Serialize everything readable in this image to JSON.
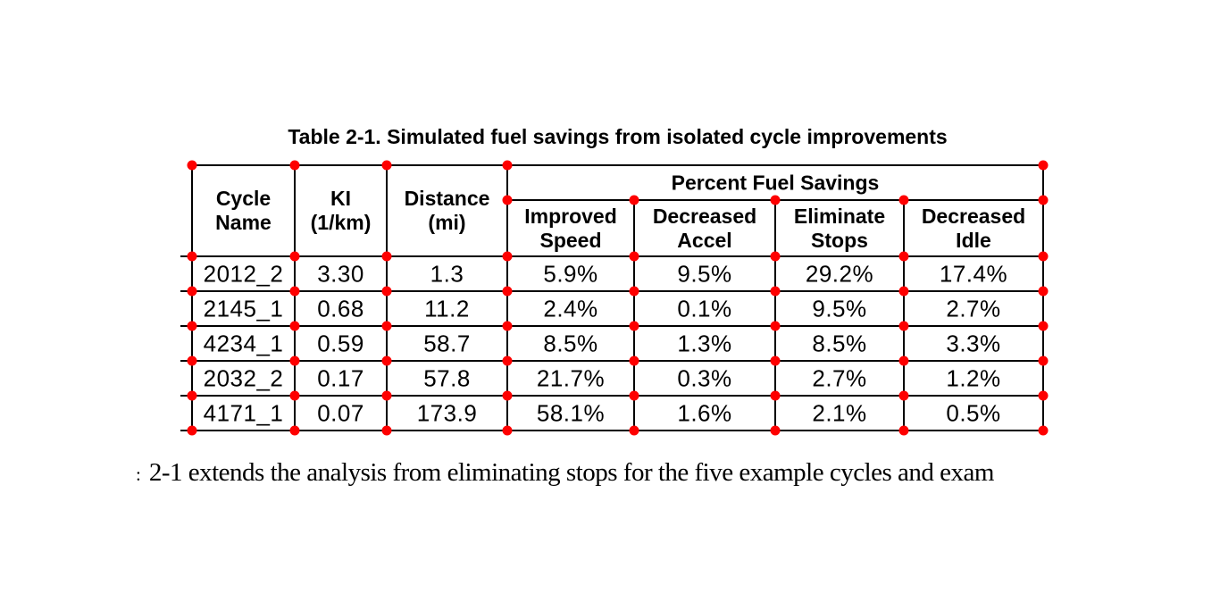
{
  "page": {
    "background": "#ffffff",
    "line_color": "#000000",
    "annotation_dot_color": "#fe0000"
  },
  "title": "Table 2-1. Simulated fuel savings from isolated cycle improvements",
  "table": {
    "header": {
      "cycle_name": [
        "Cycle",
        "Name"
      ],
      "ki": [
        "KI",
        "(1/km)"
      ],
      "distance": [
        "Distance",
        "(mi)"
      ],
      "percent_group": "Percent Fuel Savings",
      "improved_speed": [
        "Improved",
        "Speed"
      ],
      "decreased_accel": [
        "Decreased",
        "Accel"
      ],
      "eliminate_stops": [
        "Eliminate",
        "Stops"
      ],
      "decreased_idle": [
        "Decreased",
        "Idle"
      ]
    },
    "rows": [
      {
        "cycle_name": "2012_2",
        "ki": "3.30",
        "distance": "1.3",
        "improved_speed": "5.9%",
        "decreased_accel": "9.5%",
        "eliminate_stops": "29.2%",
        "decreased_idle": "17.4%"
      },
      {
        "cycle_name": "2145_1",
        "ki": "0.68",
        "distance": "11.2",
        "improved_speed": "2.4%",
        "decreased_accel": "0.1%",
        "eliminate_stops": "9.5%",
        "decreased_idle": "2.7%"
      },
      {
        "cycle_name": "4234_1",
        "ki": "0.59",
        "distance": "58.7",
        "improved_speed": "8.5%",
        "decreased_accel": "1.3%",
        "eliminate_stops": "8.5%",
        "decreased_idle": "3.3%"
      },
      {
        "cycle_name": "2032_2",
        "ki": "0.17",
        "distance": "57.8",
        "improved_speed": "21.7%",
        "decreased_accel": "0.3%",
        "eliminate_stops": "2.7%",
        "decreased_idle": "1.2%"
      },
      {
        "cycle_name": "4171_1",
        "ki": "0.07",
        "distance": "173.9",
        "improved_speed": "58.1%",
        "decreased_accel": "1.6%",
        "eliminate_stops": "2.1%",
        "decreased_idle": "0.5%"
      }
    ]
  },
  "body_text": {
    "left_fragment": ":",
    "sentence": "2-1 extends the analysis from eliminating stops for the five example cycles and exam"
  }
}
